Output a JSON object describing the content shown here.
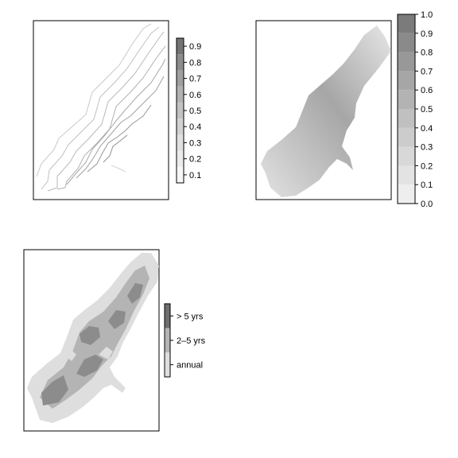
{
  "colors": {
    "frame": "#000000",
    "contour": "#a8a8a8",
    "map_light": "#dedede",
    "map_mid": "#b4b4b4",
    "map_dark": "#8c8c8c"
  },
  "chart_data": [
    {
      "type": "contour",
      "legend_placement": "right",
      "colorbar": {
        "ticks": [
          "0.1",
          "0.2",
          "0.3",
          "0.4",
          "0.5",
          "0.6",
          "0.7",
          "0.8",
          "0.9"
        ],
        "colors": [
          "#f7f7f7",
          "#ececec",
          "#e0e0e0",
          "#d2d2d2",
          "#c2c2c2",
          "#b2b2b2",
          "#a0a0a0",
          "#8c8c8c",
          "#747474"
        ]
      },
      "contour_levels": [
        0.1,
        0.2,
        0.3,
        0.4,
        0.5,
        0.6,
        0.7,
        0.8
      ]
    },
    {
      "type": "heatmap",
      "legend_placement": "right",
      "colorbar": {
        "ticks": [
          "0.0",
          "0.1",
          "0.2",
          "0.3",
          "0.4",
          "0.5",
          "0.6",
          "0.7",
          "0.8",
          "0.9",
          "1.0"
        ],
        "colors": [
          "#eeeeee",
          "#e3e3e3",
          "#d8d8d8",
          "#cccccc",
          "#c0c0c0",
          "#b3b3b3",
          "#a6a6a6",
          "#989898",
          "#8a8a8a",
          "#7b7b7b"
        ]
      }
    },
    {
      "type": "heatmap",
      "legend_placement": "right",
      "categories": [
        "annual",
        "2–5 yrs",
        "> 5 yrs"
      ],
      "category_colors": [
        "#dedede",
        "#b4b4b4",
        "#6e6e6e"
      ]
    }
  ]
}
